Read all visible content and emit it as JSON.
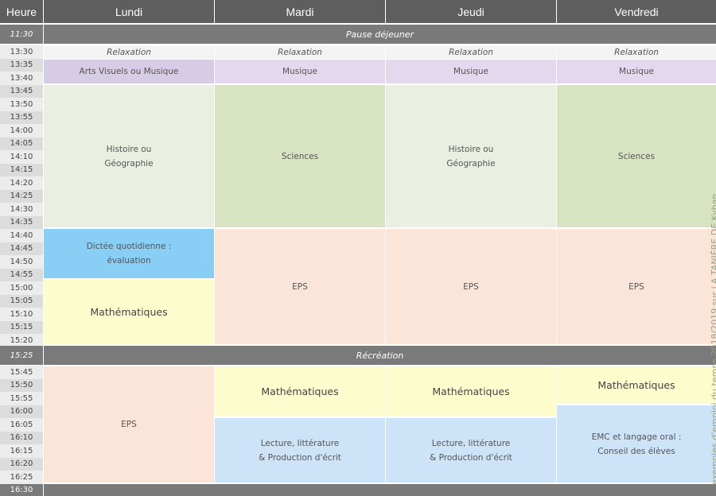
{
  "header": {
    "time_label": "Heure",
    "days": [
      "Lundi",
      "Mardi",
      "Jeudi",
      "Vendredi"
    ]
  },
  "bands": {
    "lunch": {
      "time": "11:30",
      "label": "Pause déjeuner"
    },
    "recess": {
      "time": "15:25",
      "label": "Récréation"
    },
    "end": {
      "time": "16:30"
    }
  },
  "times_afternoon_1": [
    "13:30",
    "13:35",
    "13:40",
    "13:45",
    "13:50",
    "13:55",
    "14:00",
    "14:05",
    "14:10",
    "14:15",
    "14:20",
    "14:25",
    "14:30",
    "14:35",
    "14:40",
    "14:45",
    "14:50",
    "14:55",
    "15:00",
    "15:05",
    "15:10",
    "15:15",
    "15:20"
  ],
  "times_afternoon_2": [
    "15:45",
    "15:50",
    "15:55",
    "16:00",
    "16:05",
    "16:10",
    "16:15",
    "16:20",
    "16:25"
  ],
  "relaxation": "Relaxation",
  "lundi": {
    "arts": "Arts Visuels ou Musique",
    "histoire": "Histoire ou\nGéographie",
    "dictee": "Dictée quotidienne :\névaluation",
    "maths": "Mathématiques",
    "eps": "EPS"
  },
  "mardi": {
    "musique": "Musique",
    "sciences": "Sciences",
    "eps": "EPS",
    "maths": "Mathématiques",
    "lecture": "Lecture, littérature\n& Production d'écrit"
  },
  "jeudi": {
    "musique": "Musique",
    "histoire": "Histoire ou\nGéographie",
    "eps": "EPS",
    "maths": "Mathématiques",
    "lecture": "Lecture, littérature\n& Production d'écrit"
  },
  "vendredi": {
    "musique": "Musique",
    "sciences": "Sciences",
    "eps": "EPS",
    "maths": "Mathématiques",
    "emc": "EMC et langage oral :\nConseil des élèves"
  },
  "watermark": "exemples d'emploi du temps 2018/2019 sur LA TANIÈRE DE Kyban"
}
